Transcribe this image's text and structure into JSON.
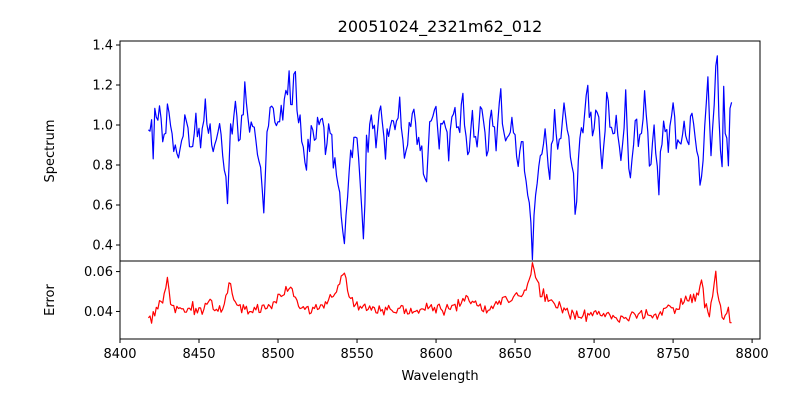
{
  "chart_data": [
    {
      "type": "line",
      "panel": "spectrum",
      "title": "20051024_2321m62_012",
      "xlabel": "",
      "ylabel": "Spectrum",
      "xlim": [
        8400,
        8805
      ],
      "ylim": [
        0.32,
        1.42
      ],
      "xticks": [],
      "yticks": [
        0.4,
        0.6,
        0.8,
        1.0,
        1.2,
        1.4
      ],
      "ytick_labels": [
        "0.4",
        "0.6",
        "0.8",
        "1.0",
        "1.2",
        "1.4"
      ],
      "color": "#0000ff",
      "x_start": 8418,
      "x_end": 8787,
      "x_step": 1,
      "anchors": [
        [
          8418,
          1.02
        ],
        [
          8419,
          0.95
        ],
        [
          8420,
          1.1
        ],
        [
          8421,
          0.84
        ],
        [
          8422,
          1.16
        ],
        [
          8423,
          0.98
        ],
        [
          8425,
          1.08
        ],
        [
          8427,
          0.92
        ],
        [
          8429,
          1.02
        ],
        [
          8431,
          1.12
        ],
        [
          8433,
          0.96
        ],
        [
          8436,
          0.84
        ],
        [
          8439,
          0.92
        ],
        [
          8442,
          1.04
        ],
        [
          8445,
          0.88
        ],
        [
          8448,
          1.03
        ],
        [
          8451,
          0.9
        ],
        [
          8454,
          1.08
        ],
        [
          8457,
          0.94
        ],
        [
          8460,
          0.88
        ],
        [
          8463,
          1.02
        ],
        [
          8465,
          0.82
        ],
        [
          8467,
          0.74
        ],
        [
          8468,
          0.65
        ],
        [
          8470,
          0.95
        ],
        [
          8473,
          1.08
        ],
        [
          8476,
          0.94
        ],
        [
          8479,
          1.16
        ],
        [
          8482,
          0.92
        ],
        [
          8485,
          1.0
        ],
        [
          8488,
          0.86
        ],
        [
          8490,
          0.72
        ],
        [
          8491,
          0.56
        ],
        [
          8493,
          0.95
        ],
        [
          8496,
          1.1
        ],
        [
          8499,
          0.96
        ],
        [
          8502,
          1.08
        ],
        [
          8505,
          1.14
        ],
        [
          8507,
          1.2
        ],
        [
          8509,
          1.1
        ],
        [
          8510,
          1.25
        ],
        [
          8511,
          1.28
        ],
        [
          8513,
          1.04
        ],
        [
          8515,
          0.98
        ],
        [
          8518,
          0.82
        ],
        [
          8521,
          1.0
        ],
        [
          8524,
          0.92
        ],
        [
          8527,
          1.08
        ],
        [
          8530,
          0.9
        ],
        [
          8533,
          0.98
        ],
        [
          8535,
          0.84
        ],
        [
          8537,
          0.72
        ],
        [
          8539,
          0.62
        ],
        [
          8540,
          0.54
        ],
        [
          8541,
          0.48
        ],
        [
          8542,
          0.37
        ],
        [
          8543,
          0.55
        ],
        [
          8545,
          0.78
        ],
        [
          8548,
          0.95
        ],
        [
          8551,
          0.84
        ],
        [
          8553,
          0.6
        ],
        [
          8554,
          0.47
        ],
        [
          8556,
          0.88
        ],
        [
          8559,
          1.02
        ],
        [
          8562,
          0.94
        ],
        [
          8565,
          1.08
        ],
        [
          8568,
          0.86
        ],
        [
          8571,
          1.02
        ],
        [
          8574,
          0.94
        ],
        [
          8577,
          1.1
        ],
        [
          8580,
          0.88
        ],
        [
          8583,
          0.98
        ],
        [
          8586,
          1.06
        ],
        [
          8589,
          0.92
        ],
        [
          8592,
          0.8
        ],
        [
          8594,
          0.74
        ],
        [
          8596,
          1.0
        ],
        [
          8599,
          1.08
        ],
        [
          8602,
          0.94
        ],
        [
          8605,
          1.04
        ],
        [
          8608,
          0.86
        ],
        [
          8611,
          1.1
        ],
        [
          8614,
          0.96
        ],
        [
          8617,
          1.12
        ],
        [
          8620,
          0.84
        ],
        [
          8623,
          1.02
        ],
        [
          8626,
          0.92
        ],
        [
          8629,
          1.14
        ],
        [
          8632,
          0.88
        ],
        [
          8635,
          1.06
        ],
        [
          8638,
          0.94
        ],
        [
          8641,
          1.12
        ],
        [
          8644,
          0.86
        ],
        [
          8647,
          1.0
        ],
        [
          8650,
          0.9
        ],
        [
          8652,
          0.8
        ],
        [
          8655,
          0.86
        ],
        [
          8657,
          0.7
        ],
        [
          8659,
          0.58
        ],
        [
          8660,
          0.48
        ],
        [
          8661,
          0.34
        ],
        [
          8662,
          0.52
        ],
        [
          8664,
          0.72
        ],
        [
          8666,
          0.85
        ],
        [
          8669,
          0.96
        ],
        [
          8672,
          0.8
        ],
        [
          8675,
          1.02
        ],
        [
          8678,
          0.9
        ],
        [
          8681,
          1.08
        ],
        [
          8684,
          0.94
        ],
        [
          8687,
          0.7
        ],
        [
          8688,
          0.52
        ],
        [
          8690,
          0.86
        ],
        [
          8693,
          1.02
        ],
        [
          8696,
          1.18
        ],
        [
          8699,
          0.94
        ],
        [
          8702,
          1.06
        ],
        [
          8705,
          0.86
        ],
        [
          8708,
          1.1
        ],
        [
          8711,
          0.94
        ],
        [
          8714,
          1.02
        ],
        [
          8717,
          0.84
        ],
        [
          8720,
          1.12
        ],
        [
          8723,
          0.72
        ],
        [
          8726,
          1.0
        ],
        [
          8729,
          0.92
        ],
        [
          8732,
          1.14
        ],
        [
          8735,
          0.84
        ],
        [
          8738,
          0.98
        ],
        [
          8741,
          0.7
        ],
        [
          8744,
          1.06
        ],
        [
          8747,
          0.9
        ],
        [
          8750,
          1.16
        ],
        [
          8753,
          0.86
        ],
        [
          8756,
          1.0
        ],
        [
          8759,
          0.92
        ],
        [
          8762,
          1.08
        ],
        [
          8765,
          0.84
        ],
        [
          8768,
          0.7
        ],
        [
          8770,
          0.98
        ],
        [
          8772,
          1.2
        ],
        [
          8774,
          0.88
        ],
        [
          8776,
          1.1
        ],
        [
          8777,
          1.28
        ],
        [
          8778,
          1.36
        ],
        [
          8779,
          1.02
        ],
        [
          8781,
          0.84
        ],
        [
          8782,
          1.26
        ],
        [
          8783,
          1.0
        ],
        [
          8785,
          0.8
        ],
        [
          8786,
          1.1
        ]
      ],
      "noise_amp": 0.09,
      "noise_seed": 7
    },
    {
      "type": "line",
      "panel": "error",
      "title": "",
      "xlabel": "Wavelength",
      "ylabel": "Error",
      "xlim": [
        8400,
        8805
      ],
      "ylim": [
        0.0262,
        0.0653
      ],
      "xticks": [
        8400,
        8450,
        8500,
        8550,
        8600,
        8650,
        8700,
        8750,
        8800
      ],
      "xtick_labels": [
        "8400",
        "8450",
        "8500",
        "8550",
        "8600",
        "8650",
        "8700",
        "8750",
        "8800"
      ],
      "yticks": [
        0.04,
        0.06
      ],
      "ytick_labels": [
        "0.04",
        "0.06"
      ],
      "color": "#ff0000",
      "x_start": 8418,
      "x_end": 8787,
      "x_step": 1,
      "anchors": [
        [
          8418,
          0.038
        ],
        [
          8420,
          0.036
        ],
        [
          8423,
          0.041
        ],
        [
          8427,
          0.045
        ],
        [
          8430,
          0.057
        ],
        [
          8432,
          0.042
        ],
        [
          8440,
          0.04
        ],
        [
          8446,
          0.042
        ],
        [
          8452,
          0.04
        ],
        [
          8458,
          0.044
        ],
        [
          8464,
          0.041
        ],
        [
          8468,
          0.05
        ],
        [
          8470,
          0.056
        ],
        [
          8472,
          0.044
        ],
        [
          8480,
          0.04
        ],
        [
          8490,
          0.041
        ],
        [
          8496,
          0.044
        ],
        [
          8500,
          0.046
        ],
        [
          8504,
          0.049
        ],
        [
          8508,
          0.055
        ],
        [
          8510,
          0.046
        ],
        [
          8515,
          0.042
        ],
        [
          8520,
          0.04
        ],
        [
          8528,
          0.042
        ],
        [
          8535,
          0.048
        ],
        [
          8538,
          0.052
        ],
        [
          8541,
          0.06
        ],
        [
          8542,
          0.058
        ],
        [
          8544,
          0.05
        ],
        [
          8548,
          0.043
        ],
        [
          8556,
          0.042
        ],
        [
          8565,
          0.04
        ],
        [
          8575,
          0.041
        ],
        [
          8585,
          0.04
        ],
        [
          8595,
          0.042
        ],
        [
          8605,
          0.04
        ],
        [
          8614,
          0.043
        ],
        [
          8620,
          0.047
        ],
        [
          8625,
          0.044
        ],
        [
          8632,
          0.041
        ],
        [
          8640,
          0.045
        ],
        [
          8648,
          0.046
        ],
        [
          8655,
          0.05
        ],
        [
          8659,
          0.055
        ],
        [
          8661,
          0.063
        ],
        [
          8663,
          0.058
        ],
        [
          8666,
          0.05
        ],
        [
          8672,
          0.045
        ],
        [
          8680,
          0.041
        ],
        [
          8690,
          0.038
        ],
        [
          8700,
          0.039
        ],
        [
          8710,
          0.038
        ],
        [
          8720,
          0.037
        ],
        [
          8730,
          0.038
        ],
        [
          8740,
          0.039
        ],
        [
          8750,
          0.042
        ],
        [
          8758,
          0.045
        ],
        [
          8762,
          0.046
        ],
        [
          8766,
          0.048
        ],
        [
          8768,
          0.055
        ],
        [
          8770,
          0.044
        ],
        [
          8773,
          0.037
        ],
        [
          8777,
          0.058
        ],
        [
          8779,
          0.045
        ],
        [
          8782,
          0.035
        ],
        [
          8785,
          0.042
        ],
        [
          8786,
          0.034
        ]
      ],
      "noise_amp": 0.0036,
      "noise_seed": 13
    }
  ]
}
